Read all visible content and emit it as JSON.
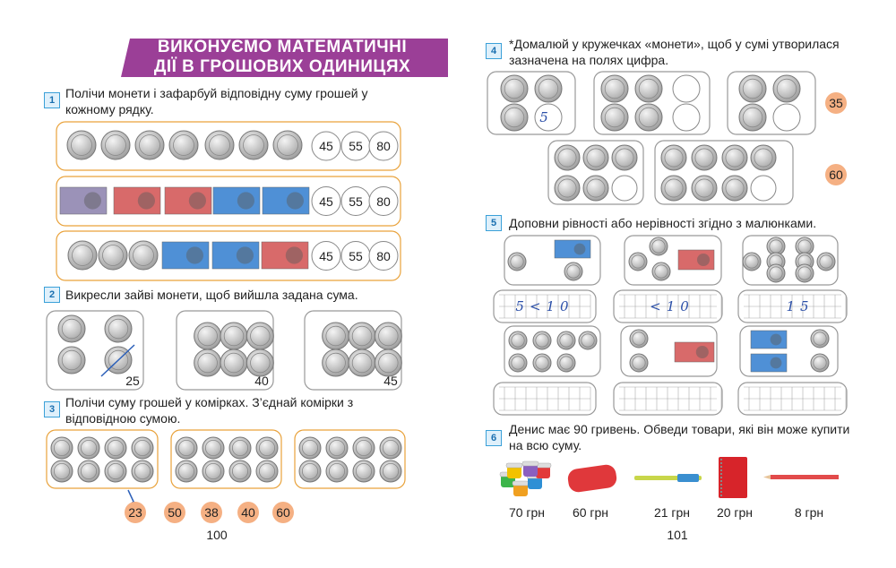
{
  "left": {
    "header": {
      "title": [
        "ВИКОНУЄМО МАТЕМАТИЧНІ",
        "ДІЇ В ГРОШОВИХ ОДИНИЦЯХ"
      ]
    },
    "task1": {
      "number": "1",
      "text": "Полічи монети і зафарбуй відповідну суму грошей у кожному рядку.",
      "rows": [
        [
          45,
          55,
          80
        ],
        [
          45,
          55,
          80
        ],
        [
          45,
          55,
          80
        ]
      ]
    },
    "task2": {
      "number": "2",
      "text": "Викресли зайві монети, щоб вийшла задана сума.",
      "sums": [
        25,
        40,
        45
      ]
    },
    "task3": {
      "number": "3",
      "text": "Полічи суму грошей у комірках. З’єднай комірки з відповідною сумою.",
      "sums": [
        23,
        50,
        38,
        40,
        60
      ]
    },
    "page_number": 100
  },
  "right": {
    "task4": {
      "number": "4",
      "text": "*Домалюй у кружечках «монети», щоб у сумі утворилася зазначена на полях цифра.",
      "written": "5",
      "targets": [
        35,
        60
      ]
    },
    "task5": {
      "number": "5",
      "text": "Доповни рівності або нерівності згідно з малюнками.",
      "written": [
        "5<10",
        "<10",
        "15"
      ]
    },
    "task6": {
      "number": "6",
      "text": "Денис має 90 гривень. Обведи товари, які він може купити на всю суму.",
      "prices": [
        "70 грн",
        "60 грн",
        "21 грн",
        "20 грн",
        "8 грн"
      ]
    },
    "page_number": 101
  }
}
